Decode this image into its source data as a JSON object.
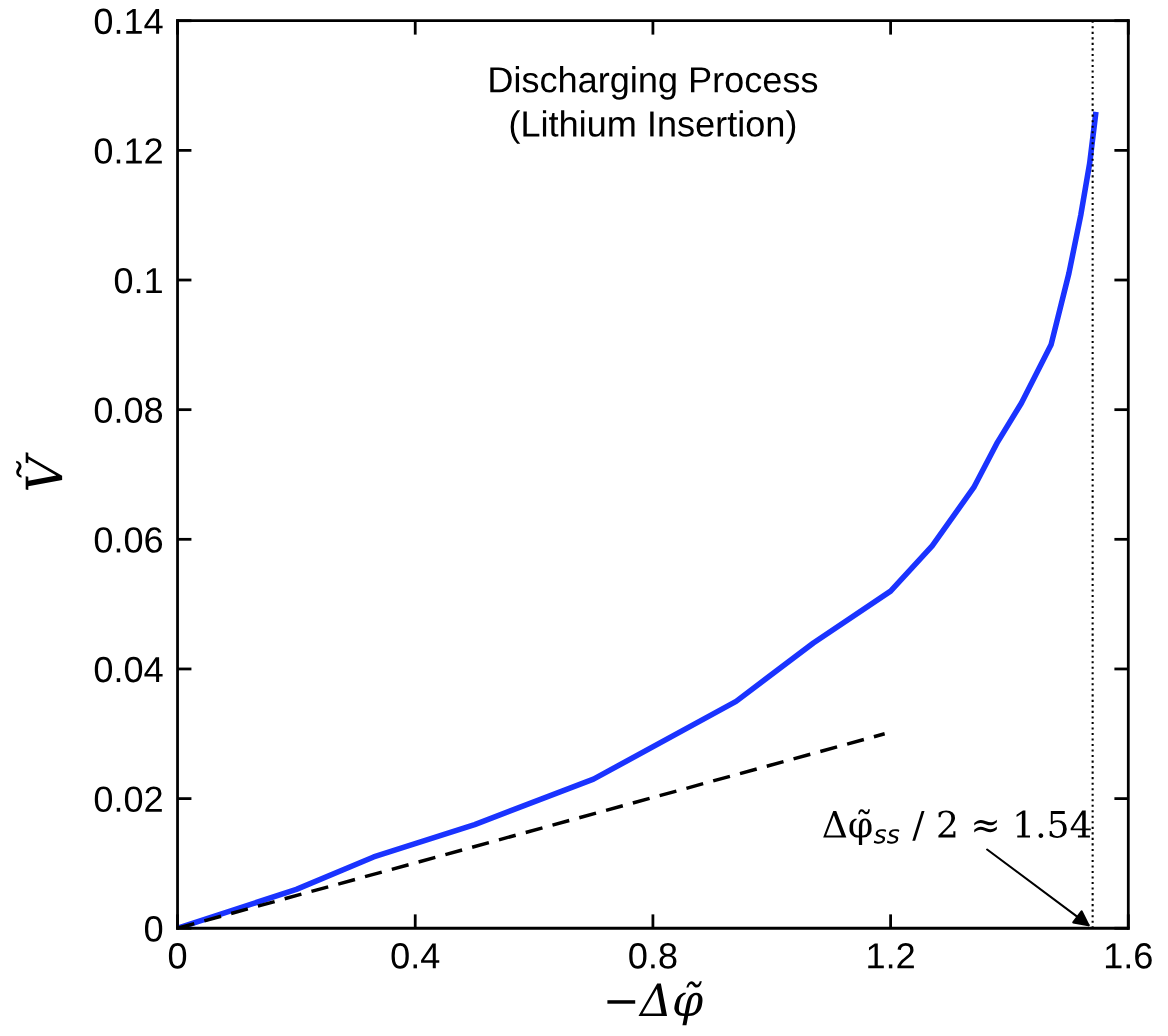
{
  "chart_data": {
    "type": "line",
    "xlabel": "−Δφ̃",
    "ylabel": "Ṽ",
    "xlim": [
      0,
      1.6
    ],
    "xticks": [
      0,
      0.4,
      0.8,
      1.2,
      1.6
    ],
    "ylim": [
      0,
      0.14
    ],
    "yticks": [
      0,
      0.02,
      0.04,
      0.06,
      0.08,
      0.1,
      0.12,
      0.14
    ],
    "grid": false,
    "legend": false,
    "series": [
      {
        "color": "#1a33ff",
        "line_style": "solid",
        "x": [
          0,
          0.2,
          0.33,
          0.5,
          0.7,
          0.94,
          1.07,
          1.2,
          1.27,
          1.34,
          1.38,
          1.42,
          1.47,
          1.5,
          1.52,
          1.535,
          1.545
        ],
        "values": [
          0,
          0.006,
          0.011,
          0.016,
          0.023,
          0.035,
          0.044,
          0.052,
          0.059,
          0.068,
          0.075,
          0.081,
          0.09,
          0.101,
          0.11,
          0.118,
          0.1255
        ]
      },
      {
        "color": "#000000",
        "line_style": "dashed",
        "x": [
          0,
          1.19
        ],
        "values": [
          0,
          0.03
        ]
      }
    ],
    "ref_lines": [
      {
        "axis": "x",
        "value": 1.54,
        "label": null,
        "color": "#000000",
        "line_style": "dotted"
      }
    ],
    "annotations": [
      "Discharging Process\n(Lithium Insertion)",
      {
        "text": "Δφ̃$_{ss}$ / 2 ≈ 1.54",
        "x": 1.54,
        "y": 0
      }
    ]
  }
}
